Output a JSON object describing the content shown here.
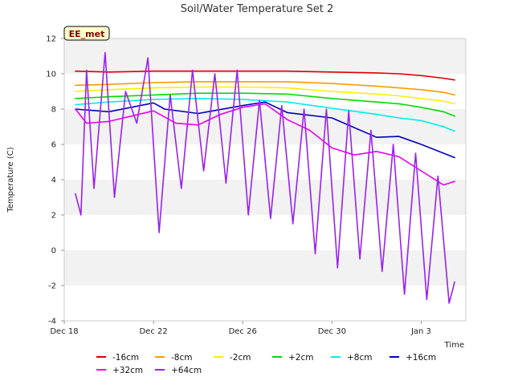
{
  "chart_data": {
    "type": "line",
    "title": "Soil/Water Temperature Set 2",
    "xlabel": "Time",
    "ylabel": "Temperature (C)",
    "site_label": "EE_met",
    "x_unit": "days",
    "xlim": [
      "2024-12-18",
      "2025-01-05"
    ],
    "ylim": [
      -4,
      12
    ],
    "yticks": [
      -4,
      -2,
      0,
      2,
      4,
      6,
      8,
      10,
      12
    ],
    "xticks": [
      {
        "date": "2024-12-18",
        "label": "Dec 18"
      },
      {
        "date": "2024-12-22",
        "label": "Dec 22"
      },
      {
        "date": "2024-12-26",
        "label": "Dec 26"
      },
      {
        "date": "2024-12-30",
        "label": "Dec 30"
      },
      {
        "date": "2025-01-03",
        "label": "Jan 3"
      }
    ],
    "grid": "horizontal bands",
    "legend_position": "bottom",
    "series": [
      {
        "name": "-16cm",
        "color": "#dd0000",
        "x": [
          "2024-12-18T12:00",
          "2024-12-20T00:00",
          "2024-12-22T00:00",
          "2024-12-24T00:00",
          "2024-12-26T00:00",
          "2024-12-28T00:00",
          "2024-12-30T00:00",
          "2025-01-01T00:00",
          "2025-01-02T00:00",
          "2025-01-03T00:00",
          "2025-01-04T00:00",
          "2025-01-04T12:00"
        ],
        "y": [
          10.15,
          10.1,
          10.15,
          10.15,
          10.15,
          10.15,
          10.1,
          10.05,
          10.0,
          9.9,
          9.75,
          9.65
        ]
      },
      {
        "name": "-8cm",
        "color": "#ff9900",
        "x": [
          "2024-12-18T12:00",
          "2024-12-20T00:00",
          "2024-12-22T00:00",
          "2024-12-24T00:00",
          "2024-12-26T00:00",
          "2024-12-28T00:00",
          "2024-12-30T00:00",
          "2025-01-01T00:00",
          "2025-01-02T00:00",
          "2025-01-03T00:00",
          "2025-01-04T00:00",
          "2025-01-04T12:00"
        ],
        "y": [
          9.35,
          9.4,
          9.5,
          9.55,
          9.55,
          9.55,
          9.45,
          9.3,
          9.2,
          9.1,
          8.95,
          8.8
        ]
      },
      {
        "name": "-2cm",
        "color": "#ffee00",
        "x": [
          "2024-12-18T12:00",
          "2024-12-20T00:00",
          "2024-12-22T00:00",
          "2024-12-24T00:00",
          "2024-12-26T00:00",
          "2024-12-28T00:00",
          "2024-12-30T00:00",
          "2025-01-01T00:00",
          "2025-01-02T00:00",
          "2025-01-03T00:00",
          "2025-01-04T00:00",
          "2025-01-04T12:00"
        ],
        "y": [
          9.0,
          9.1,
          9.2,
          9.25,
          9.25,
          9.2,
          9.0,
          8.85,
          8.75,
          8.6,
          8.45,
          8.3
        ]
      },
      {
        "name": "+2cm",
        "color": "#00dd00",
        "x": [
          "2024-12-18T12:00",
          "2024-12-20T00:00",
          "2024-12-22T00:00",
          "2024-12-24T00:00",
          "2024-12-26T00:00",
          "2024-12-28T00:00",
          "2024-12-30T00:00",
          "2025-01-01T00:00",
          "2025-01-02T00:00",
          "2025-01-03T00:00",
          "2025-01-04T00:00",
          "2025-01-04T12:00"
        ],
        "y": [
          8.6,
          8.7,
          8.8,
          8.9,
          8.9,
          8.85,
          8.6,
          8.4,
          8.3,
          8.1,
          7.85,
          7.6
        ]
      },
      {
        "name": "+8cm",
        "color": "#00eeee",
        "x": [
          "2024-12-18T12:00",
          "2024-12-20T00:00",
          "2024-12-22T00:00",
          "2024-12-24T00:00",
          "2024-12-26T00:00",
          "2024-12-28T00:00",
          "2024-12-30T00:00",
          "2025-01-01T00:00",
          "2025-01-02T00:00",
          "2025-01-03T00:00",
          "2025-01-04T00:00",
          "2025-01-04T12:00"
        ],
        "y": [
          8.25,
          8.4,
          8.55,
          8.6,
          8.55,
          8.4,
          8.05,
          7.7,
          7.5,
          7.35,
          7.0,
          6.75
        ]
      },
      {
        "name": "+16cm",
        "color": "#0000bb",
        "x": [
          "2024-12-18T12:00",
          "2024-12-20T00:00",
          "2024-12-22T00:00",
          "2024-12-22T12:00",
          "2024-12-24T00:00",
          "2024-12-26T00:00",
          "2024-12-27T00:00",
          "2024-12-28T00:00",
          "2024-12-30T00:00",
          "2025-01-01T00:00",
          "2025-01-02T00:00",
          "2025-01-03T00:00",
          "2025-01-04T00:00",
          "2025-01-04T12:00"
        ],
        "y": [
          8.0,
          7.85,
          8.35,
          8.0,
          7.75,
          8.2,
          8.4,
          7.8,
          7.5,
          6.4,
          6.45,
          6.0,
          5.5,
          5.25
        ]
      },
      {
        "name": "+32cm",
        "color": "#ee00ee",
        "x": [
          "2024-12-18T12:00",
          "2024-12-19T00:00",
          "2024-12-20T00:00",
          "2024-12-21T00:00",
          "2024-12-22T00:00",
          "2024-12-23T00:00",
          "2024-12-24T00:00",
          "2024-12-25T00:00",
          "2024-12-26T00:00",
          "2024-12-27T00:00",
          "2024-12-28T00:00",
          "2024-12-29T00:00",
          "2024-12-30T00:00",
          "2024-12-31T00:00",
          "2025-01-01T00:00",
          "2025-01-02T00:00",
          "2025-01-03T00:00",
          "2025-01-04T00:00",
          "2025-01-04T12:00"
        ],
        "y": [
          8.0,
          7.2,
          7.3,
          7.6,
          7.9,
          7.2,
          7.1,
          7.7,
          8.1,
          8.3,
          7.4,
          6.8,
          5.8,
          5.4,
          5.6,
          5.3,
          4.5,
          3.7,
          3.9
        ]
      },
      {
        "name": "+64cm",
        "color": "#9922ee",
        "x": [
          "2024-12-18T12:00",
          "2024-12-18T18:00",
          "2024-12-19T00:00",
          "2024-12-19T08:00",
          "2024-12-19T20:00",
          "2024-12-20T06:00",
          "2024-12-20T18:00",
          "2024-12-21T06:00",
          "2024-12-21T18:00",
          "2024-12-22T06:00",
          "2024-12-22T18:00",
          "2024-12-23T06:00",
          "2024-12-23T18:00",
          "2024-12-24T06:00",
          "2024-12-24T18:00",
          "2024-12-25T06:00",
          "2024-12-25T18:00",
          "2024-12-26T06:00",
          "2024-12-26T18:00",
          "2024-12-27T06:00",
          "2024-12-27T18:00",
          "2024-12-28T06:00",
          "2024-12-28T18:00",
          "2024-12-29T06:00",
          "2024-12-29T18:00",
          "2024-12-30T06:00",
          "2024-12-30T18:00",
          "2024-12-31T06:00",
          "2024-12-31T18:00",
          "2025-01-01T06:00",
          "2025-01-01T18:00",
          "2025-01-02T06:00",
          "2025-01-02T18:00",
          "2025-01-03T06:00",
          "2025-01-03T18:00",
          "2025-01-04T06:00",
          "2025-01-04T12:00"
        ],
        "y": [
          3.2,
          2.0,
          10.2,
          3.5,
          11.2,
          3.0,
          9.0,
          7.2,
          10.9,
          1.0,
          8.8,
          3.5,
          10.2,
          4.5,
          10.0,
          3.8,
          10.2,
          2.0,
          8.5,
          1.8,
          8.2,
          1.5,
          8.0,
          -0.2,
          8.0,
          -1.0,
          7.9,
          -0.5,
          6.8,
          -1.2,
          6.0,
          -2.5,
          5.5,
          -2.8,
          4.2,
          -3.0,
          -1.8
        ]
      }
    ]
  }
}
